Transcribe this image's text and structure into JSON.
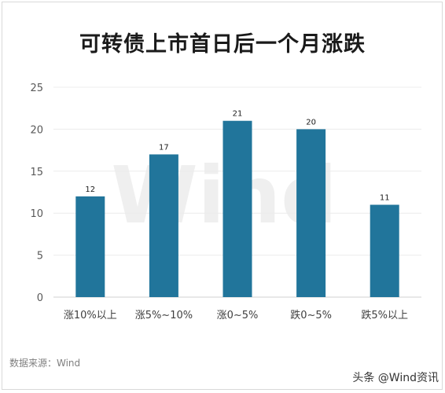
{
  "chart_data": {
    "type": "bar",
    "title": "可转债上市首日后一个月涨跌",
    "categories": [
      "涨10%以上",
      "涨5%~10%",
      "涨0~5%",
      "跌0~5%",
      "跌5%以上"
    ],
    "values": [
      12,
      17,
      21,
      20,
      11
    ],
    "ylim": [
      0,
      25
    ],
    "yticks": [
      0,
      5,
      10,
      15,
      20,
      25
    ],
    "grid": true,
    "legend": "none",
    "bar_color": "#21759b",
    "watermark": "Wind"
  },
  "footer": {
    "source": "数据来源：Wind",
    "credit": "头条 @Wind资讯"
  }
}
